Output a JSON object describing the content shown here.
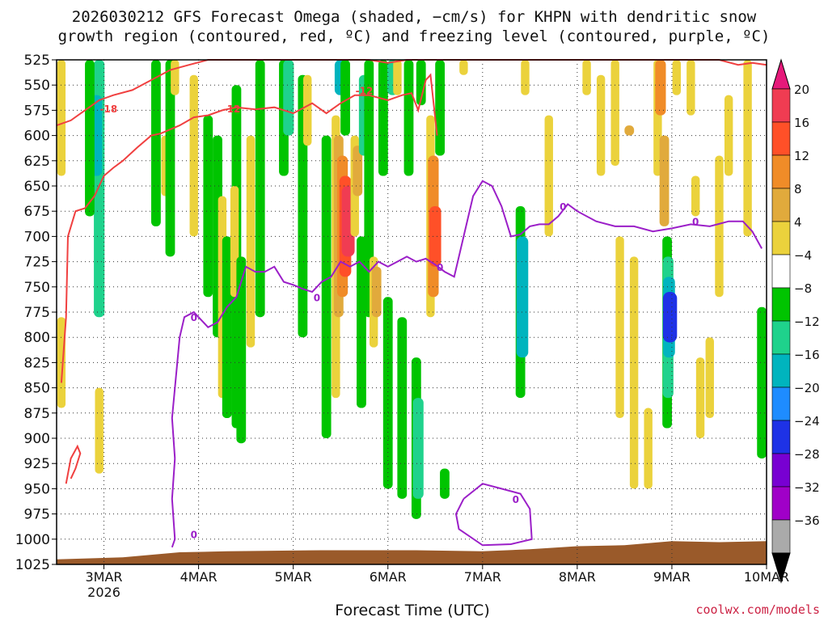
{
  "title_line1": "2026030212 GFS Forecast Omega (shaded, −cm/s) for KHPN with dendritic snow",
  "title_line2": "growth region (contoured, red, ºC) and freezing level (contoured, purple, ºC)",
  "xlabel": "Forecast Time (UTC)",
  "credit": "coolwx.com/models",
  "chart_data": {
    "type": "heatmap",
    "y_levels": [
      525,
      550,
      575,
      600,
      625,
      650,
      675,
      700,
      725,
      750,
      775,
      800,
      825,
      850,
      875,
      900,
      925,
      950,
      975,
      1000,
      1025
    ],
    "ylim": [
      525,
      1025
    ],
    "x_ticks": [
      {
        "label": "3MAR",
        "day": 3,
        "sub": "2026"
      },
      {
        "label": "4MAR",
        "day": 4
      },
      {
        "label": "5MAR",
        "day": 5
      },
      {
        "label": "6MAR",
        "day": 6
      },
      {
        "label": "7MAR",
        "day": 7
      },
      {
        "label": "8MAR",
        "day": 8
      },
      {
        "label": "9MAR",
        "day": 9
      },
      {
        "label": "10MAR",
        "day": 10
      }
    ],
    "xlim": [
      2.5,
      10.0
    ],
    "grid": true,
    "colorbar": {
      "levels": [
        20,
        16,
        12,
        8,
        4,
        -4,
        -8,
        -12,
        -16,
        -20,
        -24,
        -28,
        -32,
        -36
      ],
      "colors": [
        "#f03c52",
        "#ff5028",
        "#f08c28",
        "#e1aa3c",
        "#ebd23c",
        "#ffffff",
        "#00c400",
        "#1fd28c",
        "#00b4be",
        "#1e8cff",
        "#1e32e6",
        "#7800d2",
        "#a000c8",
        "#aaaaaa"
      ],
      "top_arrow_color": "#e6197a",
      "bottom_arrow_color": "#000000"
    },
    "cells": [
      {
        "day": 2.55,
        "p1": 525,
        "p2": 640,
        "v": 4
      },
      {
        "day": 2.55,
        "p1": 780,
        "p2": 870,
        "v": 4
      },
      {
        "day": 2.95,
        "p1": 525,
        "p2": 780,
        "v": -12
      },
      {
        "day": 2.92,
        "p1": 560,
        "p2": 640,
        "v": -16
      },
      {
        "day": 2.85,
        "p1": 525,
        "p2": 680,
        "v": -8
      },
      {
        "day": 2.95,
        "p1": 850,
        "p2": 935,
        "v": 4
      },
      {
        "day": 3.55,
        "p1": 525,
        "p2": 690,
        "v": -8
      },
      {
        "day": 3.65,
        "p1": 600,
        "p2": 660,
        "v": 4
      },
      {
        "day": 3.7,
        "p1": 525,
        "p2": 720,
        "v": -8
      },
      {
        "day": 3.75,
        "p1": 525,
        "p2": 560,
        "v": 4
      },
      {
        "day": 3.95,
        "p1": 540,
        "p2": 700,
        "v": 4
      },
      {
        "day": 4.1,
        "p1": 580,
        "p2": 760,
        "v": -8
      },
      {
        "day": 4.2,
        "p1": 600,
        "p2": 800,
        "v": -8
      },
      {
        "day": 4.25,
        "p1": 660,
        "p2": 860,
        "v": 4
      },
      {
        "day": 4.3,
        "p1": 700,
        "p2": 880,
        "v": -8
      },
      {
        "day": 4.4,
        "p1": 550,
        "p2": 890,
        "v": -8
      },
      {
        "day": 4.38,
        "p1": 650,
        "p2": 760,
        "v": 4
      },
      {
        "day": 4.45,
        "p1": 720,
        "p2": 905,
        "v": -8
      },
      {
        "day": 4.55,
        "p1": 600,
        "p2": 810,
        "v": 4
      },
      {
        "day": 4.65,
        "p1": 525,
        "p2": 780,
        "v": -8
      },
      {
        "day": 4.9,
        "p1": 525,
        "p2": 640,
        "v": -8
      },
      {
        "day": 4.95,
        "p1": 525,
        "p2": 600,
        "v": -12
      },
      {
        "day": 5.1,
        "p1": 540,
        "p2": 800,
        "v": -8
      },
      {
        "day": 5.15,
        "p1": 540,
        "p2": 610,
        "v": 4
      },
      {
        "day": 5.35,
        "p1": 600,
        "p2": 900,
        "v": -8
      },
      {
        "day": 5.45,
        "p1": 580,
        "p2": 860,
        "v": 4
      },
      {
        "day": 5.48,
        "p1": 600,
        "p2": 780,
        "v": 8
      },
      {
        "day": 5.52,
        "p1": 620,
        "p2": 760,
        "v": 12
      },
      {
        "day": 5.55,
        "p1": 640,
        "p2": 740,
        "v": 16
      },
      {
        "day": 5.58,
        "p1": 650,
        "p2": 720,
        "v": 20
      },
      {
        "day": 5.5,
        "p1": 525,
        "p2": 560,
        "v": -16
      },
      {
        "day": 5.55,
        "p1": 525,
        "p2": 600,
        "v": -8
      },
      {
        "day": 5.65,
        "p1": 600,
        "p2": 700,
        "v": 4
      },
      {
        "day": 5.68,
        "p1": 610,
        "p2": 660,
        "v": 8
      },
      {
        "day": 5.72,
        "p1": 700,
        "p2": 870,
        "v": -8
      },
      {
        "day": 5.75,
        "p1": 540,
        "p2": 620,
        "v": -12
      },
      {
        "day": 5.8,
        "p1": 525,
        "p2": 780,
        "v": -8
      },
      {
        "day": 5.85,
        "p1": 720,
        "p2": 810,
        "v": 4
      },
      {
        "day": 5.88,
        "p1": 730,
        "p2": 780,
        "v": 8
      },
      {
        "day": 5.95,
        "p1": 525,
        "p2": 640,
        "v": -8
      },
      {
        "day": 6.0,
        "p1": 760,
        "p2": 950,
        "v": -8
      },
      {
        "day": 6.05,
        "p1": 525,
        "p2": 560,
        "v": -12
      },
      {
        "day": 6.15,
        "p1": 780,
        "p2": 960,
        "v": -8
      },
      {
        "day": 6.22,
        "p1": 525,
        "p2": 640,
        "v": -8
      },
      {
        "day": 6.3,
        "p1": 820,
        "p2": 980,
        "v": -8
      },
      {
        "day": 6.32,
        "p1": 860,
        "p2": 960,
        "v": -12
      },
      {
        "day": 6.35,
        "p1": 525,
        "p2": 570,
        "v": -8
      },
      {
        "day": 6.45,
        "p1": 580,
        "p2": 780,
        "v": 4
      },
      {
        "day": 6.48,
        "p1": 620,
        "p2": 760,
        "v": 12
      },
      {
        "day": 6.5,
        "p1": 670,
        "p2": 730,
        "v": 16
      },
      {
        "day": 6.55,
        "p1": 525,
        "p2": 620,
        "v": -8
      },
      {
        "day": 6.6,
        "p1": 930,
        "p2": 960,
        "v": -8
      },
      {
        "day": 6.1,
        "p1": 525,
        "p2": 560,
        "v": 4
      },
      {
        "day": 6.8,
        "p1": 525,
        "p2": 540,
        "v": 4
      },
      {
        "day": 7.4,
        "p1": 670,
        "p2": 860,
        "v": -8
      },
      {
        "day": 7.42,
        "p1": 700,
        "p2": 820,
        "v": -16
      },
      {
        "day": 7.45,
        "p1": 525,
        "p2": 560,
        "v": 4
      },
      {
        "day": 7.7,
        "p1": 580,
        "p2": 700,
        "v": 4
      },
      {
        "day": 8.1,
        "p1": 525,
        "p2": 560,
        "v": 4
      },
      {
        "day": 8.25,
        "p1": 540,
        "p2": 640,
        "v": 4
      },
      {
        "day": 8.4,
        "p1": 525,
        "p2": 630,
        "v": 4
      },
      {
        "day": 8.45,
        "p1": 700,
        "p2": 880,
        "v": 4
      },
      {
        "day": 8.55,
        "p1": 590,
        "p2": 600,
        "v": 8
      },
      {
        "day": 8.6,
        "p1": 720,
        "p2": 950,
        "v": 4
      },
      {
        "day": 8.75,
        "p1": 870,
        "p2": 950,
        "v": 4
      },
      {
        "day": 8.85,
        "p1": 525,
        "p2": 640,
        "v": 4
      },
      {
        "day": 8.88,
        "p1": 525,
        "p2": 580,
        "v": 12
      },
      {
        "day": 8.92,
        "p1": 600,
        "p2": 690,
        "v": 8
      },
      {
        "day": 8.95,
        "p1": 700,
        "p2": 890,
        "v": -8
      },
      {
        "day": 8.96,
        "p1": 720,
        "p2": 860,
        "v": -12
      },
      {
        "day": 8.97,
        "p1": 740,
        "p2": 820,
        "v": -16
      },
      {
        "day": 8.98,
        "p1": 755,
        "p2": 805,
        "v": -24
      },
      {
        "day": 9.05,
        "p1": 525,
        "p2": 560,
        "v": 4
      },
      {
        "day": 9.2,
        "p1": 525,
        "p2": 580,
        "v": 4
      },
      {
        "day": 9.25,
        "p1": 640,
        "p2": 680,
        "v": 4
      },
      {
        "day": 9.3,
        "p1": 820,
        "p2": 900,
        "v": 4
      },
      {
        "day": 9.4,
        "p1": 800,
        "p2": 880,
        "v": 4
      },
      {
        "day": 9.5,
        "p1": 620,
        "p2": 760,
        "v": 4
      },
      {
        "day": 9.6,
        "p1": 560,
        "p2": 640,
        "v": 4
      },
      {
        "day": 9.8,
        "p1": 525,
        "p2": 700,
        "v": 4
      },
      {
        "day": 9.95,
        "p1": 770,
        "p2": 920,
        "v": -8
      }
    ],
    "freezing_level": {
      "value_label": "0",
      "color": "#9b1fc8",
      "main": [
        [
          3.75,
          920
        ],
        [
          3.72,
          880
        ],
        [
          3.8,
          800
        ],
        [
          3.85,
          780
        ],
        [
          3.95,
          775
        ],
        [
          4.1,
          790
        ],
        [
          4.2,
          785
        ],
        [
          4.3,
          770
        ],
        [
          4.4,
          760
        ],
        [
          4.5,
          730
        ],
        [
          4.6,
          735
        ],
        [
          4.7,
          735
        ],
        [
          4.8,
          730
        ],
        [
          4.9,
          745
        ],
        [
          5.0,
          748
        ],
        [
          5.1,
          752
        ],
        [
          5.2,
          755
        ],
        [
          5.3,
          745
        ],
        [
          5.4,
          740
        ],
        [
          5.5,
          725
        ],
        [
          5.6,
          730
        ],
        [
          5.7,
          725
        ],
        [
          5.8,
          735
        ],
        [
          5.9,
          725
        ],
        [
          6.0,
          730
        ],
        [
          6.1,
          725
        ],
        [
          6.2,
          720
        ],
        [
          6.3,
          725
        ],
        [
          6.4,
          722
        ],
        [
          6.5,
          728
        ],
        [
          6.6,
          735
        ],
        [
          6.7,
          740
        ],
        [
          6.8,
          700
        ],
        [
          6.9,
          660
        ],
        [
          7.0,
          645
        ],
        [
          7.1,
          650
        ],
        [
          7.2,
          670
        ],
        [
          7.3,
          700
        ],
        [
          7.4,
          698
        ],
        [
          7.5,
          690
        ],
        [
          7.6,
          688
        ],
        [
          7.7,
          688
        ],
        [
          7.8,
          680
        ],
        [
          7.9,
          668
        ],
        [
          8.0,
          675
        ],
        [
          8.2,
          685
        ],
        [
          8.4,
          690
        ],
        [
          8.6,
          690
        ],
        [
          8.8,
          695
        ],
        [
          9.0,
          692
        ],
        [
          9.2,
          688
        ],
        [
          9.4,
          690
        ],
        [
          9.6,
          685
        ],
        [
          9.75,
          685
        ],
        [
          9.85,
          695
        ],
        [
          9.95,
          712
        ]
      ],
      "low": [
        [
          3.75,
          920
        ],
        [
          3.72,
          960
        ],
        [
          3.75,
          1000
        ],
        [
          3.72,
          1008
        ]
      ],
      "loop": [
        [
          6.8,
          960
        ],
        [
          7.0,
          945
        ],
        [
          7.2,
          950
        ],
        [
          7.4,
          955
        ],
        [
          7.5,
          970
        ],
        [
          7.52,
          1000
        ],
        [
          7.3,
          1005
        ],
        [
          7.0,
          1006
        ],
        [
          6.75,
          990
        ],
        [
          6.72,
          975
        ],
        [
          6.8,
          960
        ]
      ],
      "label_points": [
        [
          3.95,
          780
        ],
        [
          5.25,
          760
        ],
        [
          6.55,
          730
        ],
        [
          7.85,
          670
        ],
        [
          9.25,
          685
        ],
        [
          3.95,
          995
        ],
        [
          7.35,
          960
        ]
      ]
    },
    "dgz_contours": {
      "color": "#f04040",
      "labels": [
        "-12",
        "-18"
      ],
      "upper": [
        [
          2.5,
          590
        ],
        [
          2.65,
          585
        ],
        [
          2.8,
          575
        ],
        [
          2.95,
          565
        ],
        [
          3.1,
          560
        ],
        [
          3.3,
          555
        ],
        [
          3.5,
          545
        ],
        [
          3.7,
          535
        ],
        [
          3.9,
          530
        ],
        [
          4.1,
          525
        ],
        [
          4.3,
          525
        ],
        [
          4.6,
          525
        ],
        [
          4.9,
          525
        ],
        [
          5.2,
          525
        ],
        [
          5.5,
          525
        ],
        [
          5.8,
          525
        ],
        [
          6.0,
          528
        ],
        [
          6.2,
          525
        ],
        [
          6.5,
          525
        ],
        [
          6.8,
          525
        ],
        [
          7.1,
          525
        ],
        [
          7.4,
          525
        ],
        [
          7.7,
          525
        ],
        [
          8.0,
          525
        ],
        [
          8.3,
          525
        ],
        [
          8.6,
          525
        ],
        [
          8.9,
          525
        ],
        [
          9.2,
          525
        ],
        [
          9.5,
          525
        ],
        [
          9.7,
          530
        ],
        [
          9.85,
          528
        ],
        [
          10.0,
          530
        ]
      ],
      "lower": [
        [
          2.55,
          845
        ],
        [
          2.6,
          780
        ],
        [
          2.62,
          700
        ],
        [
          2.7,
          675
        ],
        [
          2.8,
          672
        ],
        [
          2.9,
          660
        ],
        [
          3.0,
          640
        ],
        [
          3.1,
          632
        ],
        [
          3.2,
          625
        ],
        [
          3.35,
          612
        ],
        [
          3.5,
          600
        ],
        [
          3.6,
          598
        ],
        [
          3.8,
          590
        ],
        [
          3.95,
          582
        ],
        [
          4.1,
          580
        ],
        [
          4.25,
          575
        ],
        [
          4.4,
          572
        ],
        [
          4.6,
          574
        ],
        [
          4.8,
          572
        ],
        [
          5.0,
          578
        ],
        [
          5.2,
          568
        ],
        [
          5.35,
          578
        ],
        [
          5.5,
          568
        ],
        [
          5.65,
          560
        ],
        [
          5.8,
          560
        ],
        [
          6.0,
          565
        ],
        [
          6.15,
          560
        ],
        [
          6.25,
          558
        ],
        [
          6.32,
          575
        ],
        [
          6.4,
          545
        ],
        [
          6.45,
          540
        ],
        [
          6.52,
          600
        ]
      ],
      "small": [
        [
          2.6,
          945
        ],
        [
          2.65,
          920
        ],
        [
          2.72,
          908
        ],
        [
          2.75,
          915
        ],
        [
          2.7,
          930
        ],
        [
          2.65,
          940
        ]
      ],
      "label_points": [
        [
          3.05,
          573
        ],
        [
          4.35,
          573
        ],
        [
          5.75,
          555
        ]
      ]
    },
    "ground": [
      [
        2.5,
        1020
      ],
      [
        3.2,
        1018
      ],
      [
        3.8,
        1013
      ],
      [
        4.3,
        1012
      ],
      [
        5.3,
        1011
      ],
      [
        6.3,
        1011
      ],
      [
        7.0,
        1012
      ],
      [
        7.5,
        1010
      ],
      [
        8.0,
        1007
      ],
      [
        8.5,
        1006
      ],
      [
        9.0,
        1002
      ],
      [
        9.5,
        1003
      ],
      [
        10.0,
        1002
      ]
    ]
  }
}
